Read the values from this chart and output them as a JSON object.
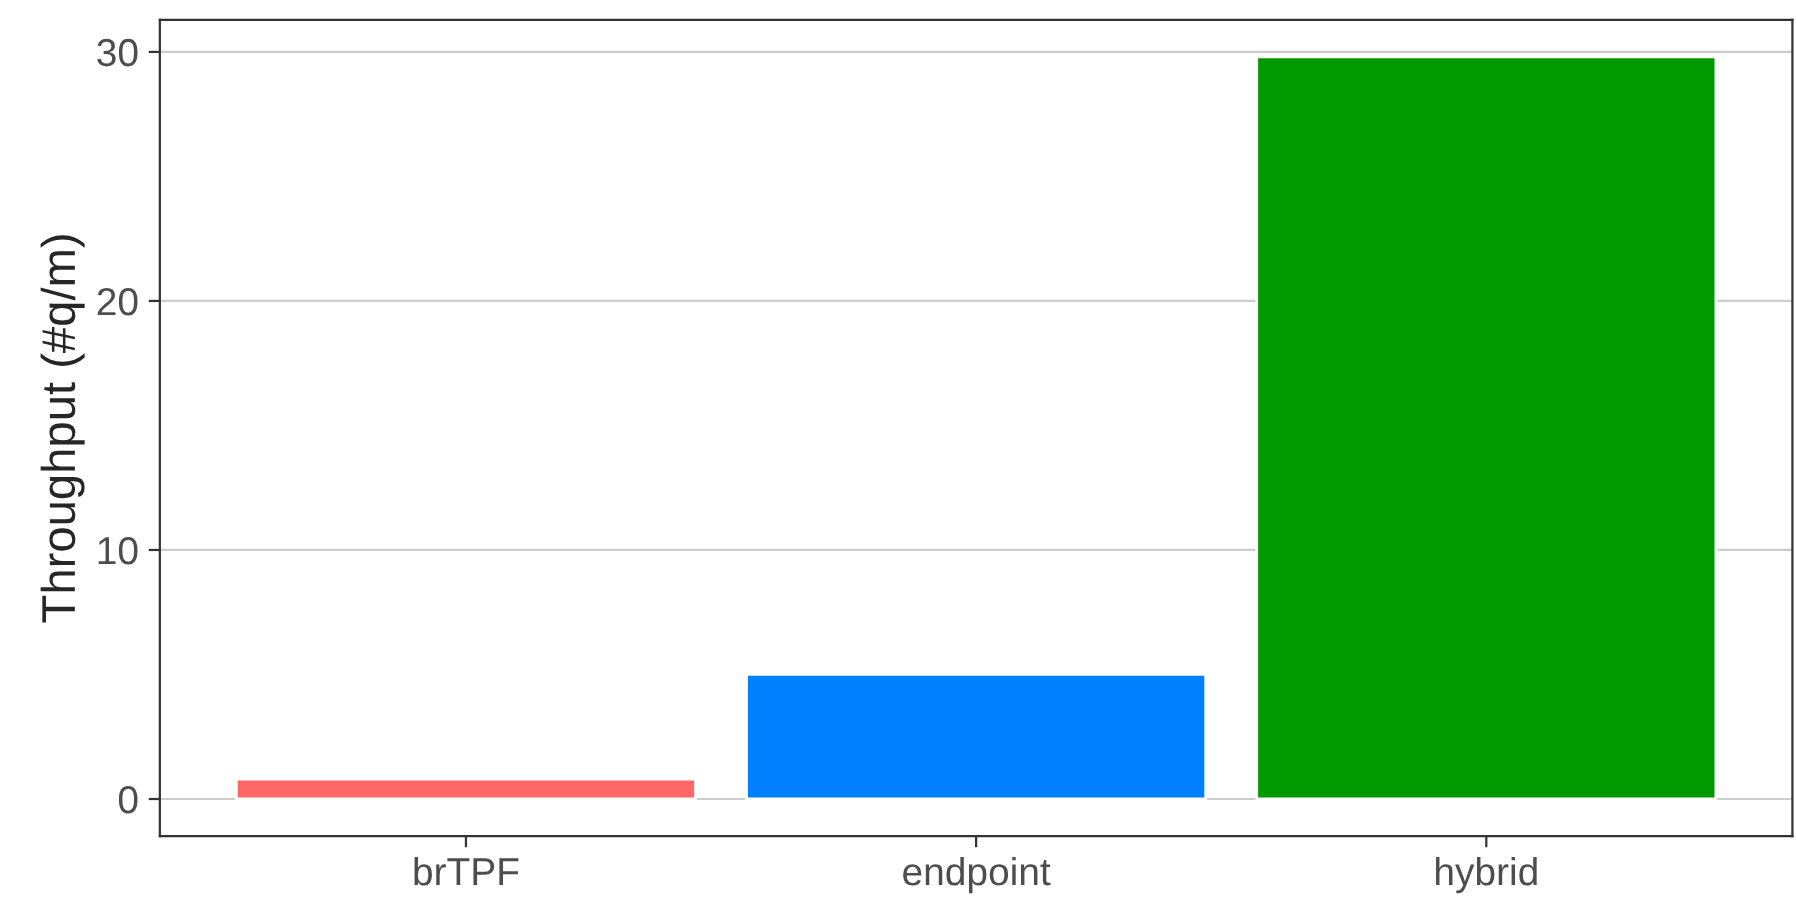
{
  "chart_data": {
    "type": "bar",
    "ylabel": "Throughput (#q/m)",
    "categories": [
      "brTPF",
      "endpoint",
      "hybrid"
    ],
    "values": [
      0.8,
      5.0,
      29.8
    ],
    "colors": [
      "#ff6666",
      "#0080ff",
      "#009900"
    ],
    "ylim": [
      -1.49,
      31.29
    ],
    "yticks": [
      0,
      10,
      20,
      30
    ],
    "grid": "y",
    "legend": false
  }
}
